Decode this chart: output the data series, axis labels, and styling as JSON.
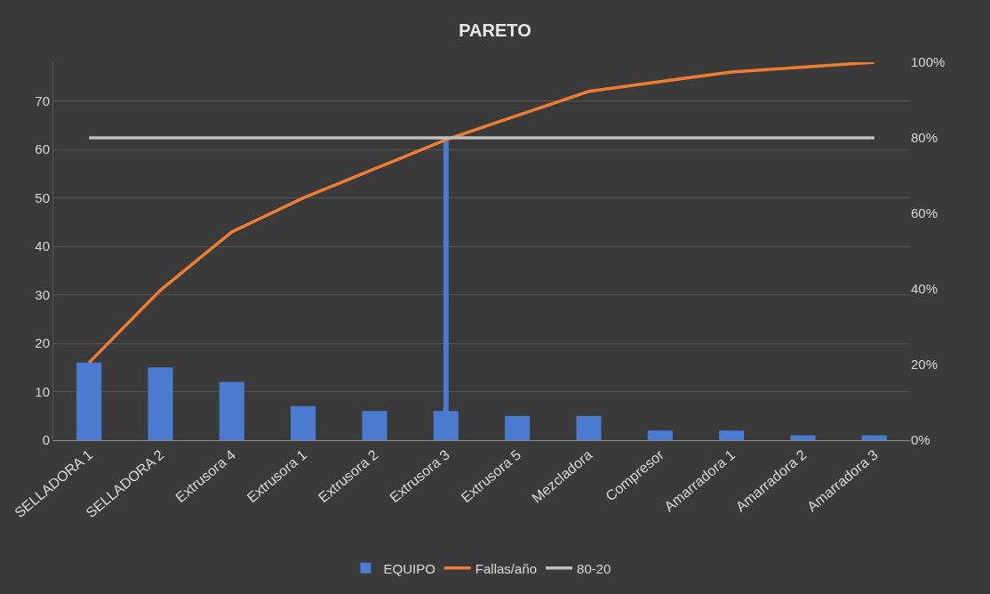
{
  "chart_data": {
    "type": "bar",
    "title": "PARETO",
    "categories": [
      "SELLADORA 1",
      "SELLADORA 2",
      "Extrusora 4",
      "Extrusora 1",
      "Extrusora 2",
      "Extrusora 3",
      "Extrusora 5",
      "Mezcladora",
      "Compresor",
      "Amarradora 1",
      "Amarradora 2",
      "Amarradora 3"
    ],
    "series": [
      {
        "name": "EQUIPO",
        "color": "#4a7bd0",
        "values": [
          16,
          15,
          12,
          7,
          6,
          6,
          5,
          5,
          2,
          2,
          1,
          1
        ]
      },
      {
        "name": "Fallas/año",
        "type": "line",
        "axis": "y2",
        "color": "#ed7d31",
        "values": [
          20.5,
          39.7,
          55.1,
          64.1,
          71.8,
          79.5,
          85.9,
          92.3,
          94.9,
          97.4,
          98.7,
          100
        ]
      },
      {
        "name": "80-20",
        "type": "line",
        "axis": "y2",
        "color": "#bfbfbf",
        "values": [
          80,
          80,
          80,
          80,
          80,
          80,
          80,
          80,
          80,
          80,
          80,
          80
        ]
      },
      {
        "type": "line",
        "color": "#4a7bd0",
        "x": [
          "Extrusora 3",
          "Extrusora 3"
        ],
        "values": [
          0,
          62.4
        ]
      }
    ],
    "ylim": [
      0,
      78
    ],
    "yticks": [
      0,
      10,
      20,
      30,
      40,
      50,
      60,
      70
    ],
    "y2lim": [
      0,
      100
    ],
    "y2ticks": [
      {
        "value": 0,
        "label": "0%"
      },
      {
        "value": 20,
        "label": "20%"
      },
      {
        "value": 40,
        "label": "40%"
      },
      {
        "value": 60,
        "label": "60%"
      },
      {
        "value": 80,
        "label": "80%"
      },
      {
        "value": 100,
        "label": "100%"
      }
    ],
    "grid": "y",
    "legend": "bottom",
    "marker": "none",
    "line_style": "solid"
  }
}
